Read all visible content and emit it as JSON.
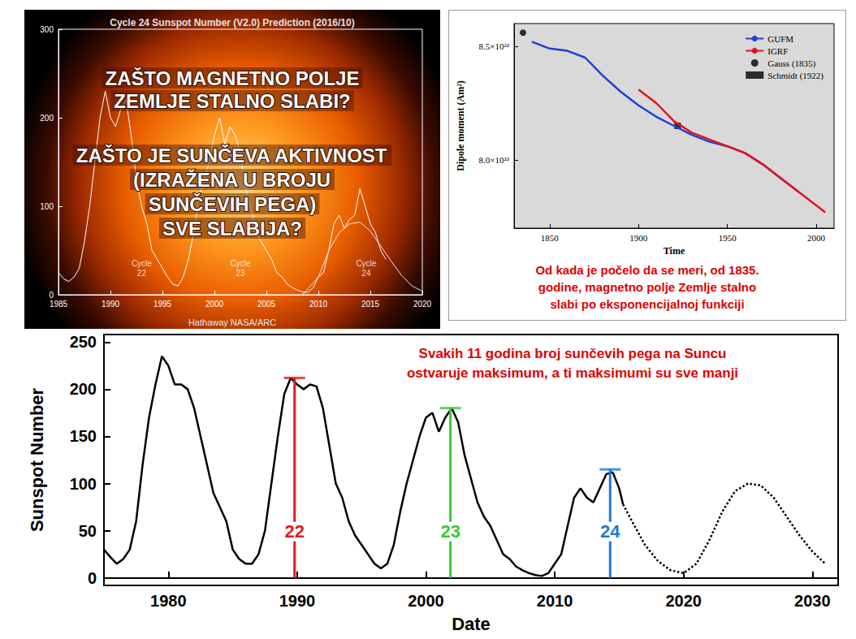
{
  "chart_data": [
    {
      "type": "line",
      "title": "Cycle 24 Sunspot Number (V2.0) Prediction (2016/10)",
      "credit": "Hathaway NASA/ARC",
      "overlay_text": [
        [
          "ZAŠTO MAGNETNO POLJE",
          "ZEMLJE STALNO SLABI?"
        ],
        [
          "ZAŠTO JE SUNČEVA AKTIVNOST",
          "(IZRAŽENA U BROJU",
          "SUNČEVIH PEGA)",
          "SVE SLABIJA?"
        ]
      ],
      "series": [
        {
          "color": "#ffffff",
          "line_style": "solid",
          "x": [
            1985,
            1985.5,
            1986,
            1986.5,
            1987,
            1987.5,
            1988,
            1988.5,
            1989,
            1989.5,
            1990,
            1990.5,
            1991,
            1991.5,
            1992,
            1992.5,
            1993,
            1993.5,
            1994,
            1994.5,
            1995,
            1995.5,
            1996,
            1996.5,
            1997,
            1997.5,
            1998,
            1998.5,
            1999,
            1999.5,
            2000,
            2000.5,
            2001,
            2001.5,
            2002,
            2002.5,
            2003,
            2003.5,
            2004,
            2004.5,
            2005,
            2005.5,
            2006,
            2006.5,
            2007,
            2007.5,
            2008,
            2008.5,
            2009,
            2009.5,
            2010,
            2010.5,
            2011,
            2011.5,
            2012,
            2012.5,
            2013,
            2013.5,
            2014,
            2014.5,
            2015,
            2015.5,
            2016,
            2016.5
          ],
          "values": [
            25,
            18,
            15,
            20,
            30,
            60,
            100,
            150,
            200,
            230,
            200,
            190,
            210,
            220,
            180,
            130,
            100,
            80,
            50,
            40,
            30,
            20,
            12,
            10,
            20,
            40,
            70,
            110,
            130,
            150,
            180,
            200,
            170,
            190,
            180,
            160,
            120,
            100,
            70,
            60,
            50,
            40,
            25,
            20,
            12,
            8,
            5,
            3,
            3,
            8,
            20,
            25,
            50,
            80,
            90,
            75,
            85,
            90,
            120,
            100,
            80,
            70,
            50,
            40
          ]
        },
        {
          "color": "#e8e8e8",
          "line_style": "solid",
          "x": [
            2008.5,
            2010,
            2011,
            2012,
            2013,
            2014,
            2015,
            2016,
            2017,
            2018,
            2019,
            2020
          ],
          "values": [
            0,
            20,
            50,
            70,
            80,
            82,
            72,
            55,
            38,
            22,
            10,
            4
          ]
        }
      ],
      "annotations": [
        {
          "text": "Cycle 22",
          "x": 1993,
          "y": 30
        },
        {
          "text": "Cycle 23",
          "x": 2002.5,
          "y": 30
        },
        {
          "text": "Cycle 24",
          "x": 2014.6,
          "y": 30
        }
      ],
      "xlim": [
        1985,
        2020
      ],
      "xticks": [
        1985,
        1990,
        1995,
        2000,
        2005,
        2010,
        2015,
        2020
      ],
      "ylim": [
        0,
        300
      ],
      "yticks": [
        0,
        100,
        200,
        300
      ],
      "grid": false
    },
    {
      "type": "line",
      "x_label": "Time",
      "y_label": "Dipole moment (Am²)",
      "legend": "upper right",
      "caption": [
        "Od kada je počelo da se meri, od 1835.",
        "godine, magnetno polje Zemlje stalno",
        "slabi po eksponencijalnoj funkciji"
      ],
      "series": [
        {
          "name": "GUFM",
          "color": "#1f3fd6",
          "x": [
            1840,
            1850,
            1860,
            1870,
            1880,
            1890,
            1900,
            1910,
            1920,
            1930,
            1940,
            1950,
            1960,
            1970,
            1980,
            1990
          ],
          "values": [
            8.52e+22,
            8.49e+22,
            8.48e+22,
            8.45e+22,
            8.37e+22,
            8.3e+22,
            8.24e+22,
            8.19e+22,
            8.15e+22,
            8.11e+22,
            8.08e+22,
            8.06e+22,
            8.03e+22,
            7.98e+22,
            7.92e+22,
            7.86e+22
          ]
        },
        {
          "name": "IGRF",
          "color": "#e0141e",
          "x": [
            1900,
            1910,
            1920,
            1930,
            1940,
            1950,
            1960,
            1970,
            1980,
            1990,
            2000,
            2005
          ],
          "values": [
            8.31e+22,
            8.25e+22,
            8.17e+22,
            8.12e+22,
            8.09e+22,
            8.06e+22,
            8.03e+22,
            7.98e+22,
            7.92e+22,
            7.86e+22,
            7.8e+22,
            7.77e+22
          ]
        },
        {
          "name": "Gauss (1835)",
          "type": "scatter",
          "marker": "circle",
          "color": "#000000",
          "x": [
            1835
          ],
          "values": [
            8.56e+22
          ]
        },
        {
          "name": "Schmidt (1922)",
          "type": "scatter",
          "marker": "square",
          "color": "#000000",
          "x": [
            1922
          ],
          "values": [
            8.15e+22
          ]
        }
      ],
      "xlim": [
        1830,
        2010
      ],
      "xticks": [
        1850,
        1900,
        1950,
        2000
      ],
      "ylim": [
        7.7e+22,
        8.6e+22
      ],
      "yticks": [
        {
          "value": 8e+22,
          "label": "8.0×10²²"
        },
        {
          "value": 8.5e+22,
          "label": "8.5×10²²"
        }
      ],
      "grid": false
    },
    {
      "type": "line",
      "x_label": "Date",
      "y_label": "Sunspot Number",
      "annotation": [
        "Svakih 11 godina broj sunčevih pega na Suncu",
        "ostvaruje maksimum, a ti maksimumi su sve manji"
      ],
      "series": [
        {
          "color": "#000000",
          "line_style": "solid",
          "x": [
            1975,
            1975.5,
            1976,
            1976.5,
            1977,
            1977.5,
            1978,
            1978.5,
            1979,
            1979.5,
            1980,
            1980.5,
            1981,
            1981.5,
            1982,
            1982.5,
            1983,
            1983.5,
            1984,
            1984.5,
            1985,
            1985.5,
            1986,
            1986.5,
            1987,
            1987.5,
            1988,
            1988.5,
            1989,
            1989.5,
            1990,
            1990.5,
            1991,
            1991.5,
            1992,
            1992.5,
            1993,
            1993.5,
            1994,
            1994.5,
            1995,
            1995.5,
            1996,
            1996.5,
            1997,
            1997.5,
            1998,
            1998.5,
            1999,
            1999.5,
            2000,
            2000.5,
            2001,
            2001.5,
            2002,
            2002.5,
            2003,
            2003.5,
            2004,
            2004.5,
            2005,
            2005.5,
            2006,
            2006.5,
            2007,
            2007.5,
            2008,
            2008.5,
            2009,
            2009.5,
            2010,
            2010.5,
            2011,
            2011.5,
            2012,
            2012.5,
            2013,
            2013.5,
            2014,
            2014.5,
            2015,
            2015.3
          ],
          "values": [
            30,
            22,
            15,
            20,
            30,
            60,
            120,
            170,
            205,
            235,
            225,
            205,
            205,
            200,
            180,
            150,
            120,
            90,
            75,
            60,
            30,
            20,
            15,
            15,
            25,
            50,
            100,
            150,
            195,
            212,
            205,
            200,
            205,
            203,
            180,
            140,
            100,
            85,
            60,
            45,
            35,
            25,
            15,
            10,
            15,
            35,
            70,
            100,
            125,
            150,
            170,
            175,
            155,
            170,
            180,
            165,
            130,
            105,
            80,
            65,
            55,
            40,
            25,
            20,
            12,
            8,
            5,
            3,
            2,
            5,
            15,
            25,
            55,
            85,
            95,
            85,
            80,
            95,
            110,
            112,
            95,
            78
          ]
        },
        {
          "color": "#000000",
          "line_style": "dotted",
          "x": [
            2015.3,
            2016,
            2017,
            2018,
            2019,
            2020,
            2021,
            2022,
            2023,
            2024,
            2025,
            2026,
            2027,
            2028,
            2029,
            2030,
            2031
          ],
          "values": [
            78,
            60,
            35,
            18,
            8,
            5,
            15,
            40,
            70,
            92,
            100,
            98,
            85,
            65,
            45,
            28,
            15
          ]
        }
      ],
      "cycle_peaks": [
        {
          "label": "22",
          "x": 1989.8,
          "value": 212,
          "color": "#e31a1c"
        },
        {
          "label": "23",
          "x": 2001.9,
          "value": 180,
          "color": "#33cc33"
        },
        {
          "label": "24",
          "x": 2014.3,
          "value": 115,
          "color": "#1f78d4"
        }
      ],
      "xlim": [
        1975,
        2032
      ],
      "xticks": [
        1980,
        1990,
        2000,
        2010,
        2020,
        2030
      ],
      "ylim": [
        -8,
        258
      ],
      "yticks": [
        0,
        50,
        100,
        150,
        200,
        250
      ],
      "grid": false
    }
  ]
}
